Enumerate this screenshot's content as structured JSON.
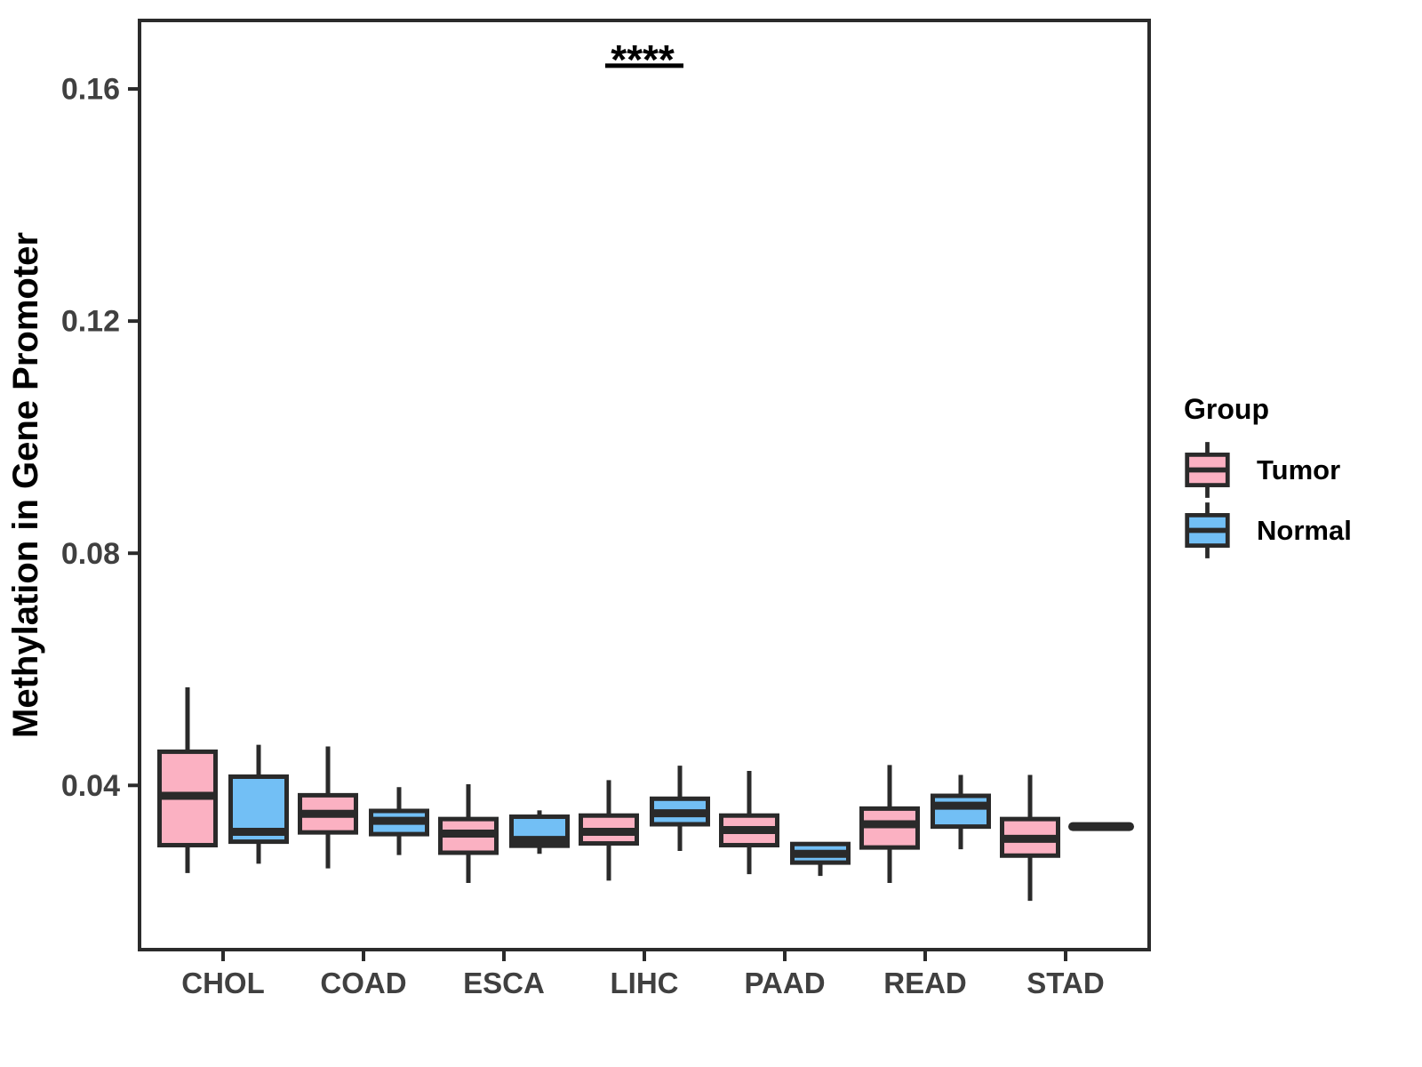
{
  "chart_data": {
    "type": "grouped_boxplot",
    "title": "",
    "xlabel": "",
    "ylabel": "Methylation in Gene Promoter",
    "categories": [
      "CHOL",
      "COAD",
      "ESCA",
      "LIHC",
      "PAAD",
      "READ",
      "STAD"
    ],
    "groups": [
      "Tumor",
      "Normal"
    ],
    "colors": {
      "Tumor": "#FBB1C2",
      "Normal": "#72BFF5"
    },
    "stroke_color": "#2A2A2A",
    "y_ticks": [
      0.04,
      0.08,
      0.12,
      0.16
    ],
    "y_tick_labels": [
      "0.04",
      "0.08",
      "0.12",
      "0.16"
    ],
    "ylim": [
      0.0117,
      0.1718
    ],
    "grid": false,
    "legend_position": "right",
    "boxes": [
      {
        "category": "CHOL",
        "group": "Tumor",
        "whisker_low": 0.0249,
        "q1": 0.0297,
        "median": 0.0382,
        "q3": 0.0458,
        "whisker_high": 0.0569
      },
      {
        "category": "CHOL",
        "group": "Normal",
        "whisker_low": 0.0265,
        "q1": 0.0303,
        "median": 0.032,
        "q3": 0.0415,
        "whisker_high": 0.047
      },
      {
        "category": "COAD",
        "group": "Tumor",
        "whisker_low": 0.0257,
        "q1": 0.0319,
        "median": 0.0351,
        "q3": 0.0383,
        "whisker_high": 0.0467
      },
      {
        "category": "COAD",
        "group": "Normal",
        "whisker_low": 0.028,
        "q1": 0.0316,
        "median": 0.0339,
        "q3": 0.0356,
        "whisker_high": 0.0397
      },
      {
        "category": "ESCA",
        "group": "Tumor",
        "whisker_low": 0.0232,
        "q1": 0.0284,
        "median": 0.0317,
        "q3": 0.0342,
        "whisker_high": 0.0402
      },
      {
        "category": "ESCA",
        "group": "Normal",
        "whisker_low": 0.0282,
        "q1": 0.0296,
        "median": 0.0306,
        "q3": 0.0346,
        "whisker_high": 0.0357
      },
      {
        "category": "LIHC",
        "group": "Tumor",
        "whisker_low": 0.0236,
        "q1": 0.03,
        "median": 0.032,
        "q3": 0.0348,
        "whisker_high": 0.0409
      },
      {
        "category": "LIHC",
        "group": "Normal",
        "whisker_low": 0.0287,
        "q1": 0.0333,
        "median": 0.0352,
        "q3": 0.0377,
        "whisker_high": 0.0434
      },
      {
        "category": "PAAD",
        "group": "Tumor",
        "whisker_low": 0.0247,
        "q1": 0.0297,
        "median": 0.0323,
        "q3": 0.0348,
        "whisker_high": 0.0425
      },
      {
        "category": "PAAD",
        "group": "Normal",
        "whisker_low": 0.0244,
        "q1": 0.0267,
        "median": 0.0282,
        "q3": 0.0299,
        "whisker_high": 0.0299
      },
      {
        "category": "READ",
        "group": "Tumor",
        "whisker_low": 0.0232,
        "q1": 0.0293,
        "median": 0.0333,
        "q3": 0.036,
        "whisker_high": 0.0435
      },
      {
        "category": "READ",
        "group": "Normal",
        "whisker_low": 0.029,
        "q1": 0.0329,
        "median": 0.0365,
        "q3": 0.0382,
        "whisker_high": 0.0418
      },
      {
        "category": "STAD",
        "group": "Tumor",
        "whisker_low": 0.0201,
        "q1": 0.0279,
        "median": 0.0308,
        "q3": 0.0342,
        "whisker_high": 0.0418
      },
      {
        "category": "STAD",
        "group": "Normal",
        "single_value": 0.0329
      }
    ],
    "annotation": {
      "label": "****",
      "category": "LIHC",
      "bar_y": 0.164
    }
  },
  "legend": {
    "title": "Group",
    "items": [
      {
        "label": "Tumor",
        "color": "#FBB1C2"
      },
      {
        "label": "Normal",
        "color": "#72BFF5"
      }
    ]
  }
}
